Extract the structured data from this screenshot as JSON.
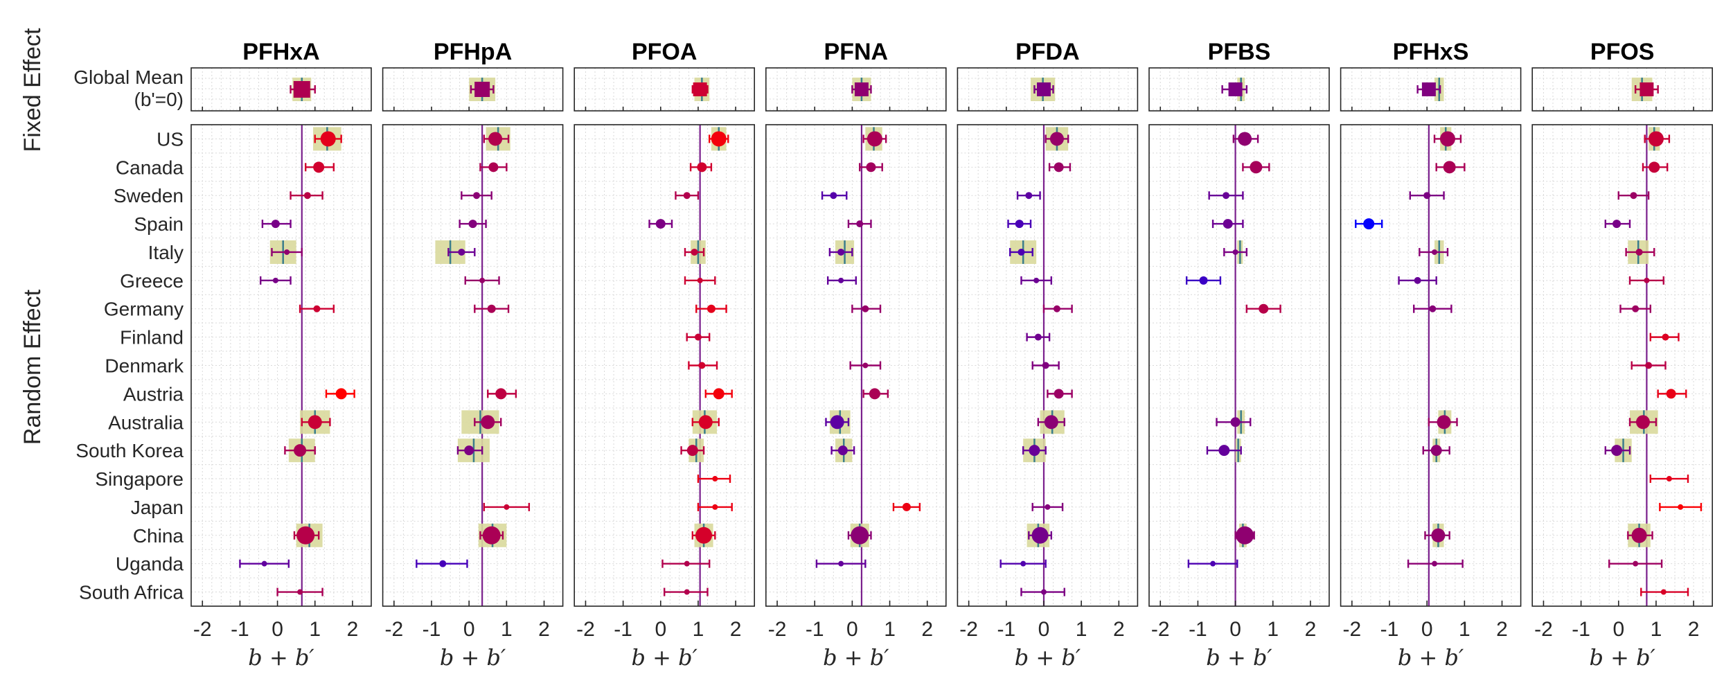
{
  "chart_data": {
    "type": "scatter",
    "section_labels": {
      "fixed": "Fixed Effect",
      "random": "Random Effect"
    },
    "fixed_row_label": [
      "Global Mean",
      "(b'=0)"
    ],
    "rows": [
      "US",
      "Canada",
      "Sweden",
      "Spain",
      "Italy",
      "Greece",
      "Germany",
      "Finland",
      "Denmark",
      "Austria",
      "Australia",
      "South Korea",
      "Singapore",
      "Japan",
      "China",
      "Uganda",
      "South Africa"
    ],
    "x_ticks": [
      -2,
      -1,
      0,
      1,
      2
    ],
    "x_tick_labels": [
      "-2",
      "-1",
      "0",
      "1",
      "2"
    ],
    "xlim": [
      -2.3,
      2.5
    ],
    "xlabel": "b + b′",
    "panels": [
      {
        "title": "PFHxA",
        "global": {
          "est": 0.65,
          "lo": 0.35,
          "hi": 1.0,
          "band": [
            0.4,
            0.9
          ],
          "size": 12
        },
        "points": [
          {
            "est": 1.35,
            "lo": 1.0,
            "hi": 1.7,
            "size": 11,
            "band": [
              0.95,
              1.7
            ]
          },
          {
            "est": 1.1,
            "lo": 0.75,
            "hi": 1.5,
            "size": 8
          },
          {
            "est": 0.8,
            "lo": 0.35,
            "hi": 1.2,
            "size": 5
          },
          {
            "est": -0.05,
            "lo": -0.4,
            "hi": 0.35,
            "size": 6
          },
          {
            "est": 0.25,
            "lo": -0.15,
            "hi": 0.65,
            "size": 4,
            "band": [
              -0.2,
              0.5
            ]
          },
          {
            "est": -0.05,
            "lo": -0.45,
            "hi": 0.35,
            "size": 4
          },
          {
            "est": 1.05,
            "lo": 0.6,
            "hi": 1.5,
            "size": 5
          },
          null,
          null,
          {
            "est": 1.7,
            "lo": 1.3,
            "hi": 2.05,
            "size": 8
          },
          {
            "est": 1.0,
            "lo": 0.65,
            "hi": 1.4,
            "size": 10,
            "band": [
              0.6,
              1.4
            ]
          },
          {
            "est": 0.6,
            "lo": 0.2,
            "hi": 1.0,
            "size": 9,
            "band": [
              0.3,
              1.0
            ]
          },
          null,
          null,
          {
            "est": 0.75,
            "lo": 0.45,
            "hi": 1.1,
            "size": 13,
            "band": [
              0.5,
              1.2
            ]
          },
          {
            "est": -0.35,
            "lo": -1.0,
            "hi": 0.3,
            "size": 4
          },
          {
            "est": 0.6,
            "lo": 0.0,
            "hi": 1.2,
            "size": 4
          }
        ]
      },
      {
        "title": "PFHpA",
        "global": {
          "est": 0.35,
          "lo": 0.05,
          "hi": 0.65,
          "band": [
            0.0,
            0.7
          ],
          "size": 11
        },
        "points": [
          {
            "est": 0.7,
            "lo": 0.4,
            "hi": 1.05,
            "size": 10,
            "band": [
              0.45,
              1.1
            ]
          },
          {
            "est": 0.65,
            "lo": 0.3,
            "hi": 1.0,
            "size": 7
          },
          {
            "est": 0.2,
            "lo": -0.2,
            "hi": 0.6,
            "size": 5
          },
          {
            "est": 0.1,
            "lo": -0.25,
            "hi": 0.45,
            "size": 6
          },
          {
            "est": -0.2,
            "lo": -0.55,
            "hi": 0.15,
            "size": 5,
            "band": [
              -0.9,
              -0.1
            ]
          },
          {
            "est": 0.35,
            "lo": -0.1,
            "hi": 0.8,
            "size": 4
          },
          {
            "est": 0.6,
            "lo": 0.15,
            "hi": 1.05,
            "size": 6
          },
          null,
          null,
          {
            "est": 0.85,
            "lo": 0.5,
            "hi": 1.25,
            "size": 8
          },
          {
            "est": 0.5,
            "lo": 0.15,
            "hi": 0.85,
            "size": 10,
            "band": [
              -0.2,
              0.8
            ]
          },
          {
            "est": 0.0,
            "lo": -0.3,
            "hi": 0.35,
            "size": 7,
            "band": [
              -0.3,
              0.55
            ]
          },
          null,
          {
            "est": 1.0,
            "lo": 0.4,
            "hi": 1.6,
            "size": 4
          },
          {
            "est": 0.6,
            "lo": 0.3,
            "hi": 0.9,
            "size": 13,
            "band": [
              0.25,
              1.0
            ]
          },
          {
            "est": -0.7,
            "lo": -1.4,
            "hi": -0.05,
            "size": 5
          },
          null
        ]
      },
      {
        "title": "PFOA",
        "global": {
          "est": 1.05,
          "lo": 0.85,
          "hi": 1.25,
          "band": [
            0.9,
            1.3
          ],
          "size": 10
        },
        "points": [
          {
            "est": 1.55,
            "lo": 1.3,
            "hi": 1.8,
            "size": 11,
            "band": [
              1.35,
              1.75
            ]
          },
          {
            "est": 1.1,
            "lo": 0.8,
            "hi": 1.35,
            "size": 7
          },
          {
            "est": 0.7,
            "lo": 0.4,
            "hi": 1.0,
            "size": 5
          },
          {
            "est": 0.0,
            "lo": -0.3,
            "hi": 0.3,
            "size": 7
          },
          {
            "est": 0.9,
            "lo": 0.65,
            "hi": 1.15,
            "size": 5,
            "band": [
              0.8,
              1.2
            ]
          },
          {
            "est": 1.05,
            "lo": 0.65,
            "hi": 1.45,
            "size": 4
          },
          {
            "est": 1.35,
            "lo": 0.95,
            "hi": 1.75,
            "size": 6
          },
          {
            "est": 1.0,
            "lo": 0.7,
            "hi": 1.3,
            "size": 5
          },
          {
            "est": 1.1,
            "lo": 0.75,
            "hi": 1.5,
            "size": 5
          },
          {
            "est": 1.55,
            "lo": 1.2,
            "hi": 1.9,
            "size": 8
          },
          {
            "est": 1.2,
            "lo": 0.85,
            "hi": 1.55,
            "size": 10,
            "band": [
              0.85,
              1.5
            ]
          },
          {
            "est": 0.85,
            "lo": 0.55,
            "hi": 1.15,
            "size": 8,
            "band": [
              0.75,
              1.15
            ]
          },
          {
            "est": 1.45,
            "lo": 1.0,
            "hi": 1.85,
            "size": 4
          },
          {
            "est": 1.45,
            "lo": 1.0,
            "hi": 1.9,
            "size": 4
          },
          {
            "est": 1.15,
            "lo": 0.85,
            "hi": 1.45,
            "size": 12,
            "band": [
              0.9,
              1.4
            ]
          },
          {
            "est": 0.7,
            "lo": 0.05,
            "hi": 1.3,
            "size": 4
          },
          {
            "est": 0.7,
            "lo": 0.1,
            "hi": 1.25,
            "size": 4
          }
        ]
      },
      {
        "title": "PFNA",
        "global": {
          "est": 0.25,
          "lo": 0.0,
          "hi": 0.5,
          "band": [
            0.0,
            0.5
          ],
          "size": 10
        },
        "points": [
          {
            "est": 0.6,
            "lo": 0.3,
            "hi": 0.9,
            "size": 11,
            "band": [
              0.35,
              0.8
            ]
          },
          {
            "est": 0.5,
            "lo": 0.2,
            "hi": 0.8,
            "size": 7
          },
          {
            "est": -0.5,
            "lo": -0.8,
            "hi": -0.15,
            "size": 5
          },
          {
            "est": 0.2,
            "lo": -0.1,
            "hi": 0.5,
            "size": 5
          },
          {
            "est": -0.3,
            "lo": -0.6,
            "hi": 0.0,
            "size": 5,
            "band": [
              -0.45,
              0.05
            ]
          },
          {
            "est": -0.3,
            "lo": -0.65,
            "hi": 0.1,
            "size": 4
          },
          {
            "est": 0.35,
            "lo": 0.0,
            "hi": 0.75,
            "size": 5
          },
          null,
          {
            "est": 0.35,
            "lo": -0.05,
            "hi": 0.75,
            "size": 4
          },
          {
            "est": 0.6,
            "lo": 0.3,
            "hi": 0.95,
            "size": 8
          },
          {
            "est": -0.4,
            "lo": -0.7,
            "hi": -0.1,
            "size": 10,
            "band": [
              -0.6,
              -0.05
            ]
          },
          {
            "est": -0.25,
            "lo": -0.55,
            "hi": 0.05,
            "size": 7,
            "band": [
              -0.45,
              0.0
            ]
          },
          null,
          {
            "est": 1.45,
            "lo": 1.1,
            "hi": 1.8,
            "size": 6
          },
          {
            "est": 0.2,
            "lo": -0.1,
            "hi": 0.5,
            "size": 13,
            "band": [
              -0.05,
              0.45
            ]
          },
          {
            "est": -0.3,
            "lo": -0.95,
            "hi": 0.35,
            "size": 4
          },
          null
        ]
      },
      {
        "title": "PFDA",
        "global": {
          "est": 0.0,
          "lo": -0.25,
          "hi": 0.25,
          "band": [
            -0.35,
            0.3
          ],
          "size": 10
        },
        "points": [
          {
            "est": 0.35,
            "lo": 0.05,
            "hi": 0.65,
            "size": 10,
            "band": [
              0.05,
              0.65
            ]
          },
          {
            "est": 0.4,
            "lo": 0.15,
            "hi": 0.7,
            "size": 7
          },
          {
            "est": -0.4,
            "lo": -0.7,
            "hi": -0.1,
            "size": 5
          },
          {
            "est": -0.65,
            "lo": -0.95,
            "hi": -0.35,
            "size": 6
          },
          {
            "est": -0.6,
            "lo": -0.9,
            "hi": -0.3,
            "size": 5,
            "band": [
              -0.9,
              -0.2
            ]
          },
          {
            "est": -0.2,
            "lo": -0.6,
            "hi": 0.2,
            "size": 4
          },
          {
            "est": 0.35,
            "lo": 0.0,
            "hi": 0.75,
            "size": 5
          },
          {
            "est": -0.15,
            "lo": -0.45,
            "hi": 0.15,
            "size": 5
          },
          {
            "est": 0.05,
            "lo": -0.3,
            "hi": 0.4,
            "size": 5
          },
          {
            "est": 0.4,
            "lo": 0.1,
            "hi": 0.75,
            "size": 7
          },
          {
            "est": 0.2,
            "lo": -0.15,
            "hi": 0.55,
            "size": 10,
            "band": [
              -0.1,
              0.55
            ]
          },
          {
            "est": -0.25,
            "lo": -0.55,
            "hi": 0.05,
            "size": 8,
            "band": [
              -0.55,
              0.05
            ]
          },
          null,
          {
            "est": 0.1,
            "lo": -0.3,
            "hi": 0.5,
            "size": 4
          },
          {
            "est": -0.1,
            "lo": -0.4,
            "hi": 0.2,
            "size": 12,
            "band": [
              -0.45,
              0.15
            ]
          },
          {
            "est": -0.55,
            "lo": -1.15,
            "hi": 0.05,
            "size": 4
          },
          {
            "est": 0.0,
            "lo": -0.6,
            "hi": 0.55,
            "size": 4
          }
        ]
      },
      {
        "title": "PFBS",
        "global": {
          "est": 0.0,
          "lo": -0.35,
          "hi": 0.3,
          "band": [
            0.05,
            0.25
          ],
          "size": 10
        },
        "points": [
          {
            "est": 0.25,
            "lo": -0.05,
            "hi": 0.6,
            "size": 10
          },
          {
            "est": 0.55,
            "lo": 0.2,
            "hi": 0.9,
            "size": 9
          },
          {
            "est": -0.25,
            "lo": -0.7,
            "hi": 0.2,
            "size": 5
          },
          {
            "est": -0.2,
            "lo": -0.6,
            "hi": 0.2,
            "size": 7
          },
          {
            "est": 0.0,
            "lo": -0.3,
            "hi": 0.3,
            "size": 4,
            "band": [
              0.05,
              0.2
            ]
          },
          {
            "est": -0.85,
            "lo": -1.3,
            "hi": -0.4,
            "size": 6
          },
          {
            "est": 0.75,
            "lo": 0.3,
            "hi": 1.2,
            "size": 7
          },
          null,
          null,
          null,
          {
            "est": 0.0,
            "lo": -0.5,
            "hi": 0.4,
            "size": 7,
            "band": [
              0.05,
              0.25
            ]
          },
          {
            "est": -0.3,
            "lo": -0.75,
            "hi": 0.15,
            "size": 8,
            "band": [
              0.0,
              0.15
            ]
          },
          null,
          null,
          {
            "est": 0.25,
            "lo": 0.0,
            "hi": 0.5,
            "size": 13,
            "band": [
              0.1,
              0.3
            ]
          },
          {
            "est": -0.6,
            "lo": -1.25,
            "hi": 0.05,
            "size": 4
          },
          null
        ]
      },
      {
        "title": "PFHxS",
        "global": {
          "est": 0.05,
          "lo": -0.25,
          "hi": 0.35,
          "band": [
            0.2,
            0.45
          ],
          "size": 10
        },
        "points": [
          {
            "est": 0.55,
            "lo": 0.2,
            "hi": 0.9,
            "size": 11,
            "band": [
              0.35,
              0.65
            ]
          },
          {
            "est": 0.6,
            "lo": 0.25,
            "hi": 1.0,
            "size": 9
          },
          {
            "est": 0.0,
            "lo": -0.45,
            "hi": 0.45,
            "size": 5
          },
          {
            "est": -1.55,
            "lo": -1.9,
            "hi": -1.2,
            "size": 8
          },
          {
            "est": 0.2,
            "lo": -0.2,
            "hi": 0.55,
            "size": 4,
            "band": [
              0.2,
              0.45
            ]
          },
          {
            "est": -0.25,
            "lo": -0.75,
            "hi": 0.25,
            "size": 5
          },
          {
            "est": 0.15,
            "lo": -0.35,
            "hi": 0.65,
            "size": 5
          },
          null,
          null,
          null,
          {
            "est": 0.45,
            "lo": 0.05,
            "hi": 0.8,
            "size": 10,
            "band": [
              0.3,
              0.65
            ]
          },
          {
            "est": 0.25,
            "lo": -0.1,
            "hi": 0.6,
            "size": 8,
            "band": [
              0.15,
              0.35
            ]
          },
          null,
          null,
          {
            "est": 0.3,
            "lo": -0.05,
            "hi": 0.6,
            "size": 10,
            "band": [
              0.15,
              0.45
            ]
          },
          {
            "est": 0.2,
            "lo": -0.5,
            "hi": 0.95,
            "size": 4
          },
          null
        ]
      },
      {
        "title": "PFOS",
        "global": {
          "est": 0.75,
          "lo": 0.45,
          "hi": 1.05,
          "band": [
            0.35,
            0.9
          ],
          "size": 10
        },
        "points": [
          {
            "est": 1.0,
            "lo": 0.7,
            "hi": 1.35,
            "size": 11,
            "band": [
              0.8,
              1.1
            ]
          },
          {
            "est": 0.95,
            "lo": 0.65,
            "hi": 1.3,
            "size": 8
          },
          {
            "est": 0.4,
            "lo": 0.0,
            "hi": 0.8,
            "size": 5
          },
          {
            "est": -0.05,
            "lo": -0.35,
            "hi": 0.3,
            "size": 6
          },
          {
            "est": 0.55,
            "lo": 0.2,
            "hi": 0.95,
            "size": 5,
            "band": [
              0.25,
              0.8
            ]
          },
          {
            "est": 0.75,
            "lo": 0.3,
            "hi": 1.2,
            "size": 4
          },
          {
            "est": 0.45,
            "lo": 0.05,
            "hi": 0.85,
            "size": 5
          },
          {
            "est": 1.25,
            "lo": 0.85,
            "hi": 1.6,
            "size": 5
          },
          {
            "est": 0.8,
            "lo": 0.35,
            "hi": 1.25,
            "size": 5
          },
          {
            "est": 1.4,
            "lo": 1.05,
            "hi": 1.8,
            "size": 7
          },
          {
            "est": 0.65,
            "lo": 0.3,
            "hi": 1.0,
            "size": 10,
            "band": [
              0.3,
              1.05
            ]
          },
          {
            "est": -0.05,
            "lo": -0.35,
            "hi": 0.3,
            "size": 8,
            "band": [
              -0.1,
              0.35
            ]
          },
          {
            "est": 1.35,
            "lo": 0.85,
            "hi": 1.85,
            "size": 4
          },
          {
            "est": 1.65,
            "lo": 1.1,
            "hi": 2.2,
            "size": 4
          },
          {
            "est": 0.55,
            "lo": 0.25,
            "hi": 0.9,
            "size": 11,
            "band": [
              0.25,
              0.85
            ]
          },
          {
            "est": 0.45,
            "lo": -0.25,
            "hi": 1.15,
            "size": 4
          },
          {
            "est": 1.2,
            "lo": 0.6,
            "hi": 1.85,
            "size": 4
          }
        ]
      }
    ]
  }
}
